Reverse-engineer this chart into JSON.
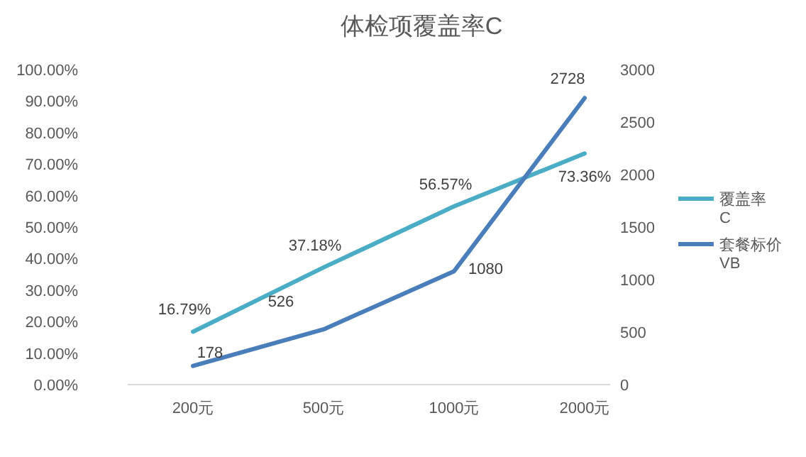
{
  "chart_data": {
    "type": "line",
    "title": "体检项覆盖率C",
    "categories": [
      "200元",
      "500元",
      "1000元",
      "2000元"
    ],
    "series": [
      {
        "name": "覆盖率 C",
        "color": "#4bacc6",
        "values": [
          16.79,
          37.18,
          56.57,
          73.36
        ],
        "value_labels": [
          "16.79%",
          "37.18%",
          "56.57%",
          "73.36%"
        ]
      },
      {
        "name": "套餐标价 VB",
        "color": "#4a7ebb",
        "axis": "y2",
        "values": [
          178,
          526,
          1080,
          2728
        ],
        "value_labels": [
          "178",
          "526",
          "1080",
          "2728"
        ]
      }
    ],
    "ylim": [
      0,
      100
    ],
    "yticks": [
      {
        "value": 0,
        "label": "0.00%"
      },
      {
        "value": 10,
        "label": "10.00%"
      },
      {
        "value": 20,
        "label": "20.00%"
      },
      {
        "value": 30,
        "label": "30.00%"
      },
      {
        "value": 40,
        "label": "40.00%"
      },
      {
        "value": 50,
        "label": "50.00%"
      },
      {
        "value": 60,
        "label": "60.00%"
      },
      {
        "value": 70,
        "label": "70.00%"
      },
      {
        "value": 80,
        "label": "80.00%"
      },
      {
        "value": 90,
        "label": "90.00%"
      },
      {
        "value": 100,
        "label": "100.00%"
      }
    ],
    "y2lim": [
      0,
      3000
    ],
    "y2ticks": [
      0,
      500,
      1000,
      1500,
      2000,
      2500,
      3000
    ],
    "grid": false,
    "legend": "right",
    "marker": "none",
    "line_style": "solid"
  }
}
